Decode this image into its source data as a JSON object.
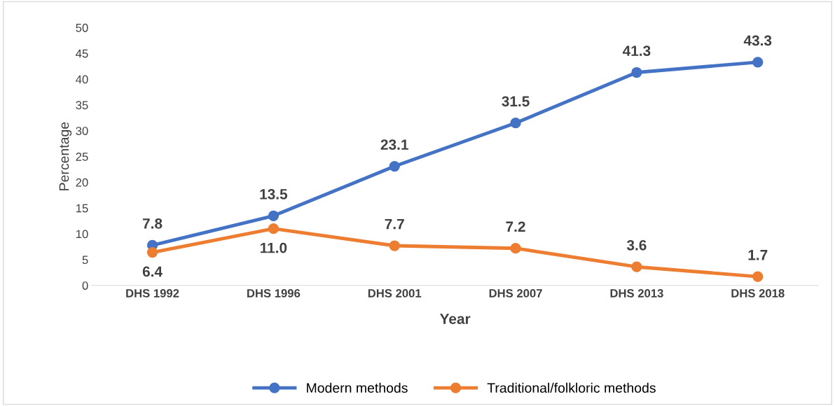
{
  "chart_data": {
    "type": "line",
    "xlabel": "Year",
    "ylabel": "Percentage",
    "categories": [
      "DHS 1992",
      "DHS 1996",
      "DHS 2001",
      "DHS 2007",
      "DHS 2013",
      "DHS 2018"
    ],
    "series": [
      {
        "name": "Modern methods",
        "color": "#4472c4",
        "values": [
          7.8,
          13.5,
          23.1,
          31.5,
          41.3,
          43.3
        ],
        "value_labels": [
          "7.8",
          "13.5",
          "23.1",
          "31.5",
          "41.3",
          "43.3"
        ]
      },
      {
        "name": "Traditional/folkloric methods",
        "color": "#ed7d31",
        "values": [
          6.4,
          11.0,
          7.7,
          7.2,
          3.6,
          1.7
        ],
        "value_labels": [
          "6.4",
          "11.0",
          "7.7",
          "7.2",
          "3.6",
          "1.7"
        ]
      }
    ],
    "ylim": [
      0,
      50
    ],
    "yticks": [
      0,
      5,
      10,
      15,
      20,
      25,
      30,
      35,
      40,
      45,
      50
    ],
    "grid": false,
    "legend": "bottom",
    "marker": "circle",
    "line_style": "solid"
  }
}
